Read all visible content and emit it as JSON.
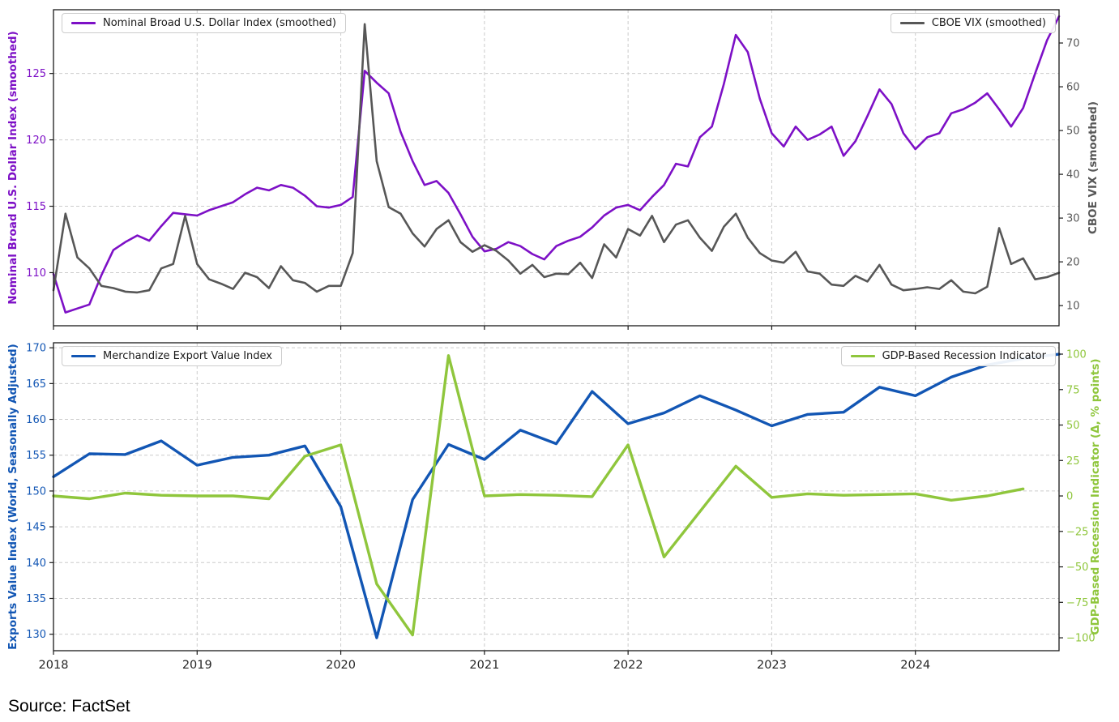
{
  "source_note": "Source: FactSet",
  "colors": {
    "dollar_purple": "#7d10c6",
    "vix_gray": "#575757",
    "exports_blue": "#1256b4",
    "recession_green": "#8fc63c",
    "grid": "#cccccc",
    "spine": "#1a1a1a",
    "x_tick_label": "#262626"
  },
  "chart_data": [
    {
      "id": "top-panel",
      "type": "line",
      "x_range": [
        2018,
        2025
      ],
      "x_ticks": [
        2018,
        2019,
        2020,
        2021,
        2022,
        2023,
        2024
      ],
      "x_tick_labels_visible": false,
      "grid": true,
      "legend_position": "top-left / top-right (inside)",
      "left_axis": {
        "label": "Nominal Broad U.S. Dollar Index (smoothed)",
        "color": "#7d10c6",
        "ticks": [
          110,
          115,
          120,
          125
        ],
        "range": [
          106.0,
          129.8
        ]
      },
      "right_axis": {
        "label": "CBOE VIX (smoothed)",
        "color": "#575757",
        "ticks": [
          10,
          20,
          30,
          40,
          50,
          60,
          70
        ],
        "range": [
          5.4,
          77.6
        ]
      },
      "legends": [
        {
          "label": "Nominal Broad U.S. Dollar Index (smoothed)",
          "color": "#7d10c6",
          "position": "top-left"
        },
        {
          "label": "CBOE VIX (smoothed)",
          "color": "#575757",
          "position": "top-right"
        }
      ],
      "series": [
        {
          "name": "Nominal Broad U.S. Dollar Index (smoothed)",
          "axis": "left",
          "color": "#7d10c6",
          "width": 2.6,
          "x_start": 2018,
          "x_step": 0.0833333,
          "values": [
            109.9,
            107.0,
            107.3,
            107.6,
            109.8,
            111.7,
            112.3,
            112.8,
            112.4,
            113.5,
            114.5,
            114.4,
            114.3,
            114.7,
            115.0,
            115.3,
            115.9,
            116.4,
            116.2,
            116.6,
            116.4,
            115.8,
            115.0,
            114.9,
            115.1,
            115.7,
            125.2,
            124.3,
            123.5,
            120.6,
            118.4,
            116.6,
            116.9,
            116.0,
            114.4,
            112.7,
            111.6,
            111.8,
            112.3,
            112.0,
            111.4,
            111.0,
            112.0,
            112.4,
            112.7,
            113.4,
            114.3,
            114.9,
            115.1,
            114.7,
            115.7,
            116.6,
            118.2,
            118.0,
            120.2,
            121.0,
            124.2,
            127.9,
            126.6,
            123.1,
            120.5,
            119.5,
            121.0,
            120.0,
            120.4,
            121.0,
            118.8,
            119.9,
            121.8,
            123.8,
            122.7,
            120.5,
            119.3,
            120.2,
            120.5,
            122.0,
            122.3,
            122.8,
            123.5,
            122.3,
            121.0,
            122.4,
            125.0,
            127.5,
            129.3
          ]
        },
        {
          "name": "CBOE VIX (smoothed)",
          "axis": "right",
          "color": "#575757",
          "width": 2.6,
          "x_start": 2018,
          "x_step": 0.0833333,
          "values": [
            13.5,
            31.0,
            21.0,
            18.5,
            14.5,
            14.0,
            13.2,
            13.0,
            13.5,
            18.5,
            19.5,
            30.5,
            19.5,
            16.0,
            15.0,
            13.8,
            17.5,
            16.5,
            14.0,
            19.0,
            15.8,
            15.2,
            13.2,
            14.5,
            14.5,
            22.0,
            74.3,
            43.0,
            32.5,
            31.0,
            26.5,
            23.5,
            27.5,
            29.5,
            24.5,
            22.3,
            23.8,
            22.5,
            20.3,
            17.3,
            19.3,
            16.5,
            17.3,
            17.2,
            19.8,
            16.3,
            24.0,
            21.0,
            27.5,
            26.0,
            30.5,
            24.5,
            28.5,
            29.5,
            25.5,
            22.5,
            28.0,
            31.0,
            25.5,
            22.0,
            20.3,
            19.8,
            22.3,
            17.8,
            17.3,
            14.8,
            14.5,
            16.8,
            15.5,
            19.3,
            14.8,
            13.5,
            13.8,
            14.2,
            13.8,
            15.8,
            13.2,
            12.8,
            14.3,
            27.7,
            19.5,
            20.8,
            16.0,
            16.5,
            17.5
          ]
        }
      ]
    },
    {
      "id": "bottom-panel",
      "type": "line",
      "x_range": [
        2018,
        2025
      ],
      "x_ticks": [
        2018,
        2019,
        2020,
        2021,
        2022,
        2023,
        2024
      ],
      "x_tick_labels_visible": true,
      "grid": true,
      "left_axis": {
        "label": "Exports Value Index (World, Seasonally Adjusted)",
        "color": "#1256b4",
        "ticks": [
          130,
          135,
          140,
          145,
          150,
          155,
          160,
          165,
          170
        ],
        "range": [
          127.7,
          170.7
        ]
      },
      "right_axis": {
        "label": "GDP-Based Recession Indicator (Δ, % points)",
        "color": "#8fc63c",
        "ticks": [
          -100,
          -75,
          -50,
          -25,
          0,
          25,
          50,
          75,
          100
        ],
        "range": [
          -109.1,
          108.0
        ]
      },
      "legends": [
        {
          "label": "Merchandize Export Value Index",
          "color": "#1256b4",
          "position": "top-left"
        },
        {
          "label": "GDP-Based Recession Indicator",
          "color": "#8fc63c",
          "position": "top-right"
        }
      ],
      "series": [
        {
          "name": "Merchandize Export Value Index",
          "axis": "left",
          "color": "#1256b4",
          "width": 3.4,
          "x_start": 2018,
          "x_step": 0.25,
          "values": [
            152.0,
            155.2,
            155.1,
            157.0,
            153.6,
            154.7,
            155.0,
            156.3,
            147.8,
            129.5,
            148.8,
            156.5,
            154.4,
            158.5,
            156.6,
            163.9,
            159.4,
            160.9,
            163.3,
            161.3,
            159.1,
            160.7,
            161.0,
            164.5,
            163.3,
            165.9,
            167.6,
            168.5,
            169.1
          ]
        },
        {
          "name": "GDP-Based Recession Indicator",
          "axis": "right",
          "color": "#8fc63c",
          "width": 3.4,
          "x_start": 2018,
          "x_step": 0.25,
          "values": [
            0,
            -2,
            2,
            0.5,
            0,
            0,
            -2,
            28,
            36,
            -62,
            -98,
            99,
            0,
            1,
            0.5,
            -0.5,
            36,
            -43,
            -11,
            21,
            -1,
            1.5,
            0.5,
            1,
            1.5,
            -3,
            0,
            5
          ]
        }
      ]
    }
  ]
}
